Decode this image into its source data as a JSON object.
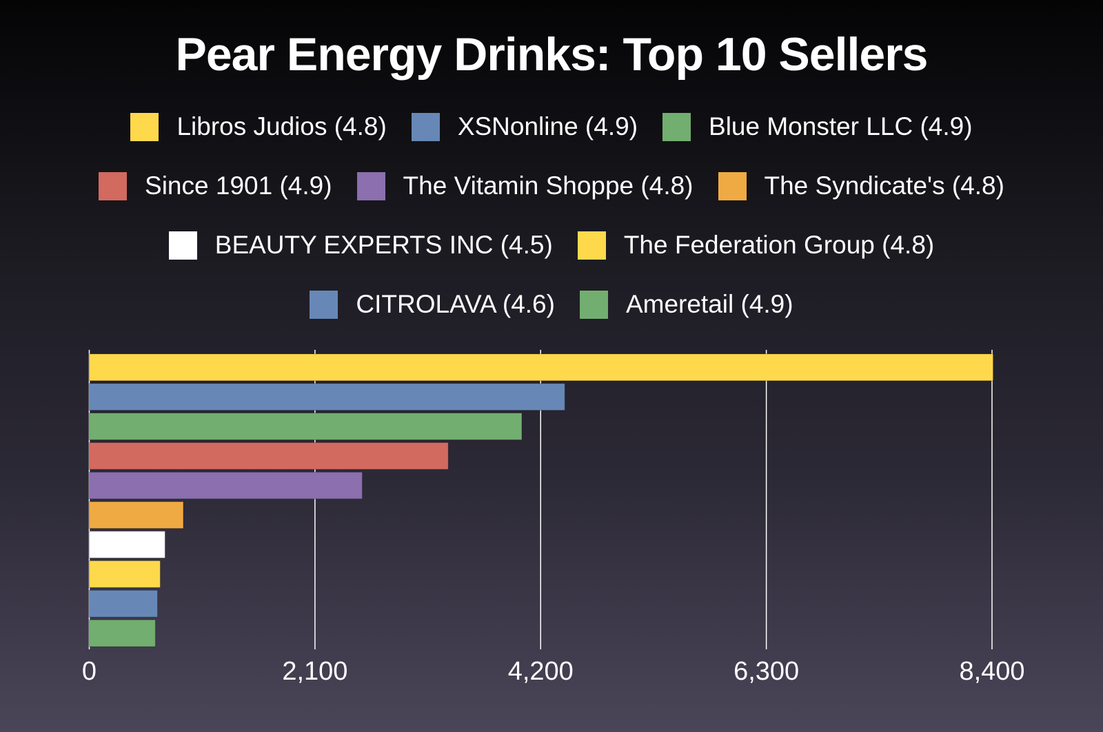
{
  "chart_data": {
    "type": "bar",
    "orientation": "horizontal",
    "title": "Pear Energy Drinks: Top 10 Sellers",
    "categories": [
      "Libros Judios (4.8)",
      "XSNonline (4.9)",
      "Blue Monster LLC (4.9)",
      "Since 1901 (4.9)",
      "The Vitamin Shoppe (4.8)",
      "The Syndicate's (4.8)",
      "BEAUTY EXPERTS INC (4.5)",
      "The Federation Group (4.8)",
      "CITROLAVA (4.6)",
      "Ameretail (4.9)"
    ],
    "values": [
      8410,
      4425,
      4025,
      3340,
      2540,
      875,
      705,
      660,
      635,
      615
    ],
    "colors": [
      "#ffd94c",
      "#6788b6",
      "#72ae6f",
      "#d26a60",
      "#8b6fae",
      "#f0aa44",
      "#ffffff",
      "#ffd94c",
      "#6788b6",
      "#72ae6f"
    ],
    "xlim": [
      0,
      8400
    ],
    "xticks": [
      "0",
      "2,100",
      "4,200",
      "6,300",
      "8,400"
    ],
    "xtick_values": [
      0,
      2100,
      4200,
      6300,
      8400
    ],
    "grid": true,
    "legend_position": "top"
  }
}
